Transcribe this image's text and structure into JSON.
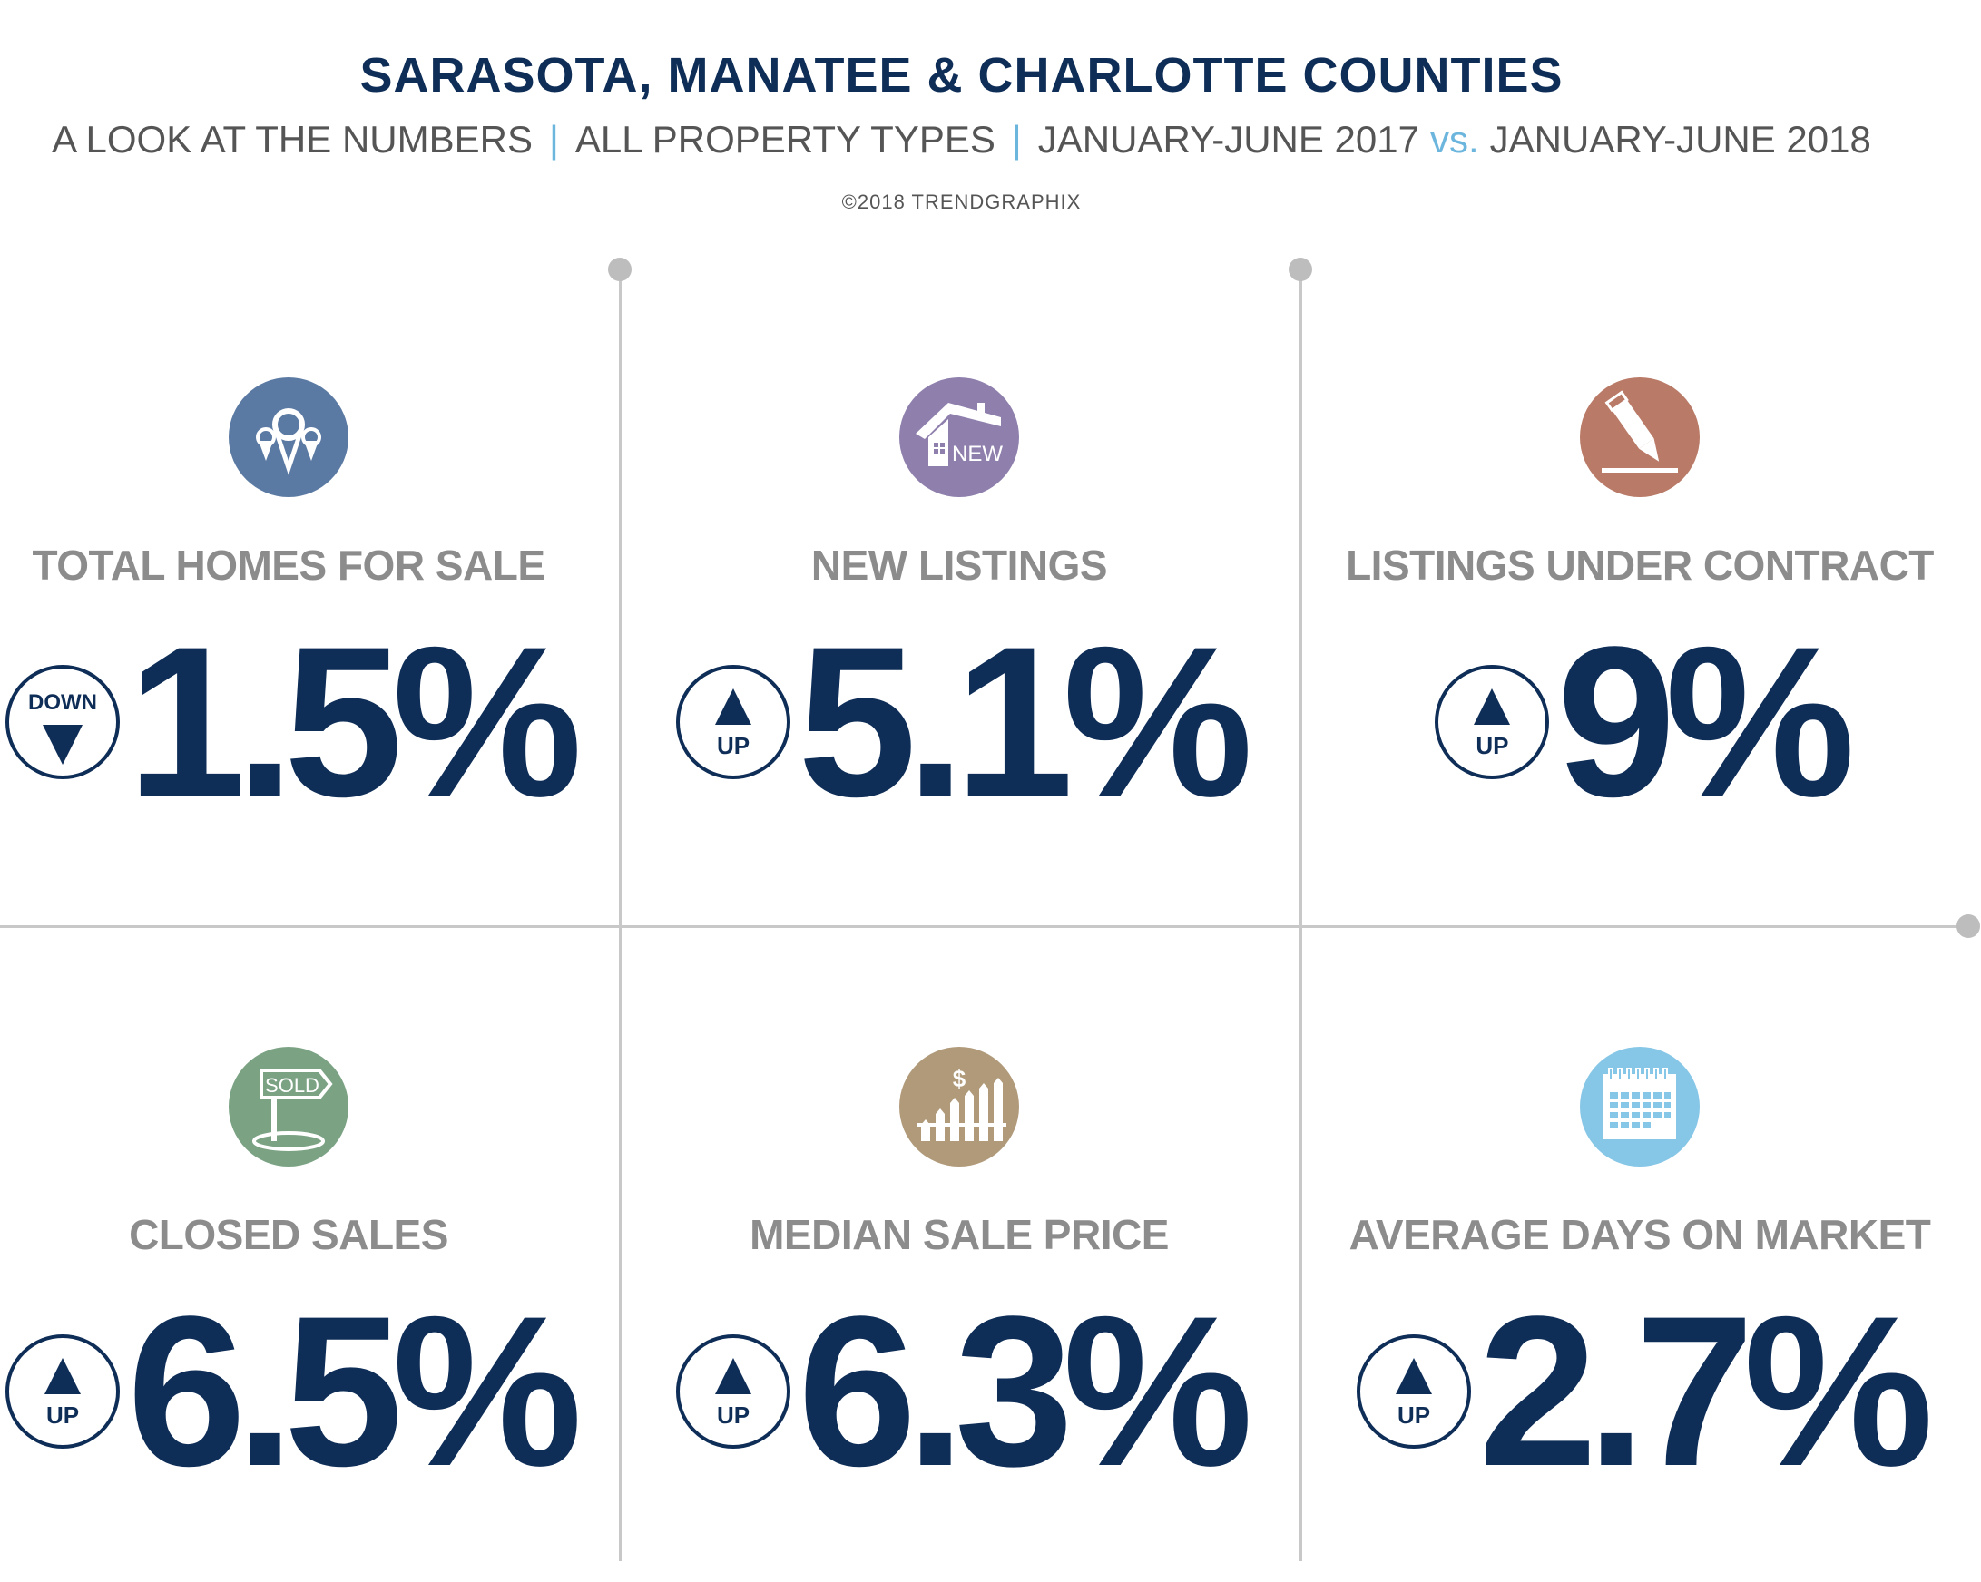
{
  "header": {
    "title": "SARASOTA, MANATEE & CHARLOTTE COUNTIES",
    "subtitle_part1": "A LOOK AT THE NUMBERS",
    "subtitle_part2": "ALL PROPERTY TYPES",
    "subtitle_part3": "JANUARY-JUNE 2017",
    "subtitle_vs": "vs.",
    "subtitle_part4": "JANUARY-JUNE 2018",
    "separator": "|",
    "copyright": "©2018 TRENDGRAPHIX"
  },
  "colors": {
    "navy": "#0e2d57",
    "accent_blue": "#6cb6de",
    "label_gray": "#8c8c8c"
  },
  "stats": [
    {
      "label": "TOTAL HOMES FOR SALE",
      "direction": "DOWN",
      "value": "1.5%",
      "icon": "map-pins-icon",
      "icon_color": "#5b7aa3"
    },
    {
      "label": "NEW LISTINGS",
      "direction": "UP",
      "value": "5.1%",
      "icon": "new-house-icon",
      "icon_color": "#8e7fad",
      "icon_text": "NEW"
    },
    {
      "label": "LISTINGS UNDER CONTRACT",
      "direction": "UP",
      "value": "9%",
      "icon": "pen-icon",
      "icon_color": "#b97a67"
    },
    {
      "label": "CLOSED SALES",
      "direction": "UP",
      "value": "6.5%",
      "icon": "sold-sign-icon",
      "icon_color": "#7aa283",
      "icon_text": "SOLD"
    },
    {
      "label": "MEDIAN SALE PRICE",
      "direction": "UP",
      "value": "6.3%",
      "icon": "price-fence-icon",
      "icon_color": "#b09a7a",
      "icon_text": "$"
    },
    {
      "label": "AVERAGE DAYS ON MARKET",
      "direction": "UP",
      "value": "2.7%",
      "icon": "calendar-icon",
      "icon_color": "#86c6e6"
    }
  ]
}
